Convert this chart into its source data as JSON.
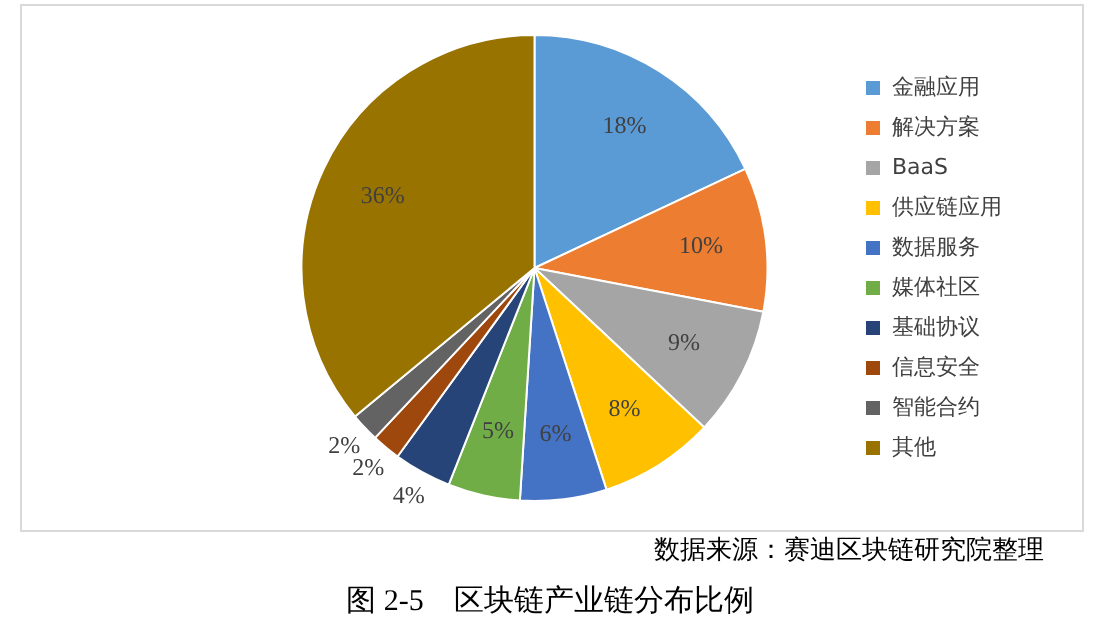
{
  "chart_data": {
    "type": "pie",
    "title": "图 2-5　区块链产业链分布比例",
    "categories": [
      "金融应用",
      "解决方案",
      "BaaS",
      "供应链应用",
      "数据服务",
      "媒体社区",
      "基础协议",
      "信息安全",
      "智能合约",
      "其他"
    ],
    "values": [
      18,
      10,
      9,
      8,
      6,
      5,
      4,
      2,
      2,
      36
    ],
    "colors": [
      "#5b9bd5",
      "#ed7d31",
      "#a5a5a5",
      "#ffc000",
      "#4472c4",
      "#70ad47",
      "#264478",
      "#9e480e",
      "#636363",
      "#997300"
    ],
    "value_labels": [
      "18%",
      "10%",
      "9%",
      "8%",
      "6%",
      "5%",
      "4%",
      "2%",
      "2%",
      "36%"
    ],
    "legend": "right",
    "annotations": [
      "数据来源：赛迪区块链研究院整理"
    ]
  }
}
